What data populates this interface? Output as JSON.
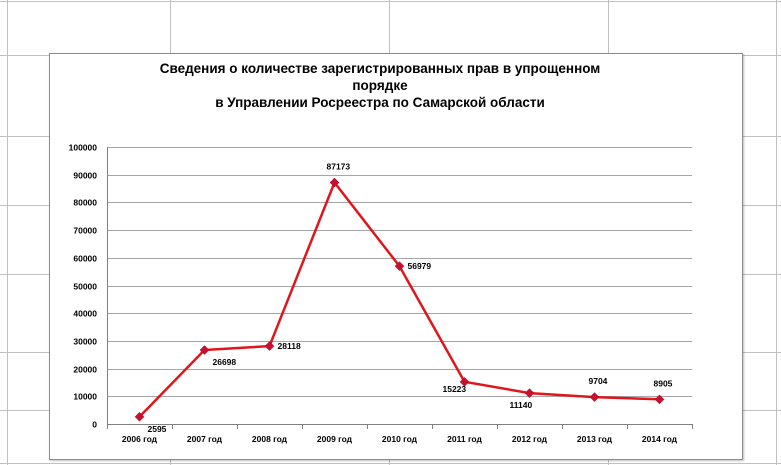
{
  "chart_data": {
    "type": "line",
    "title_lines": [
      "Сведения о количестве зарегистрированных прав в упрощенном",
      "порядке",
      "в Управлении Росреестра по Самарской области"
    ],
    "categories": [
      "2006 год",
      "2007 год",
      "2008 год",
      "2009 год",
      "2010 год",
      "2011 год",
      "2012 год",
      "2013 год",
      "2014 год"
    ],
    "series": [
      {
        "values": [
          2595,
          26698,
          28118,
          87173,
          56979,
          15223,
          11140,
          9704,
          8905
        ],
        "color": "#e0161c"
      }
    ],
    "data_labels": [
      "2595",
      "26698",
      "28118",
      "87173",
      "56979",
      "15223",
      "11140",
      "9704",
      "8905"
    ],
    "yticks": [
      "0",
      "10000",
      "20000",
      "30000",
      "40000",
      "50000",
      "60000",
      "70000",
      "80000",
      "90000",
      "100000"
    ],
    "ylim": [
      0,
      100000
    ],
    "grid": true,
    "legend": "none"
  }
}
